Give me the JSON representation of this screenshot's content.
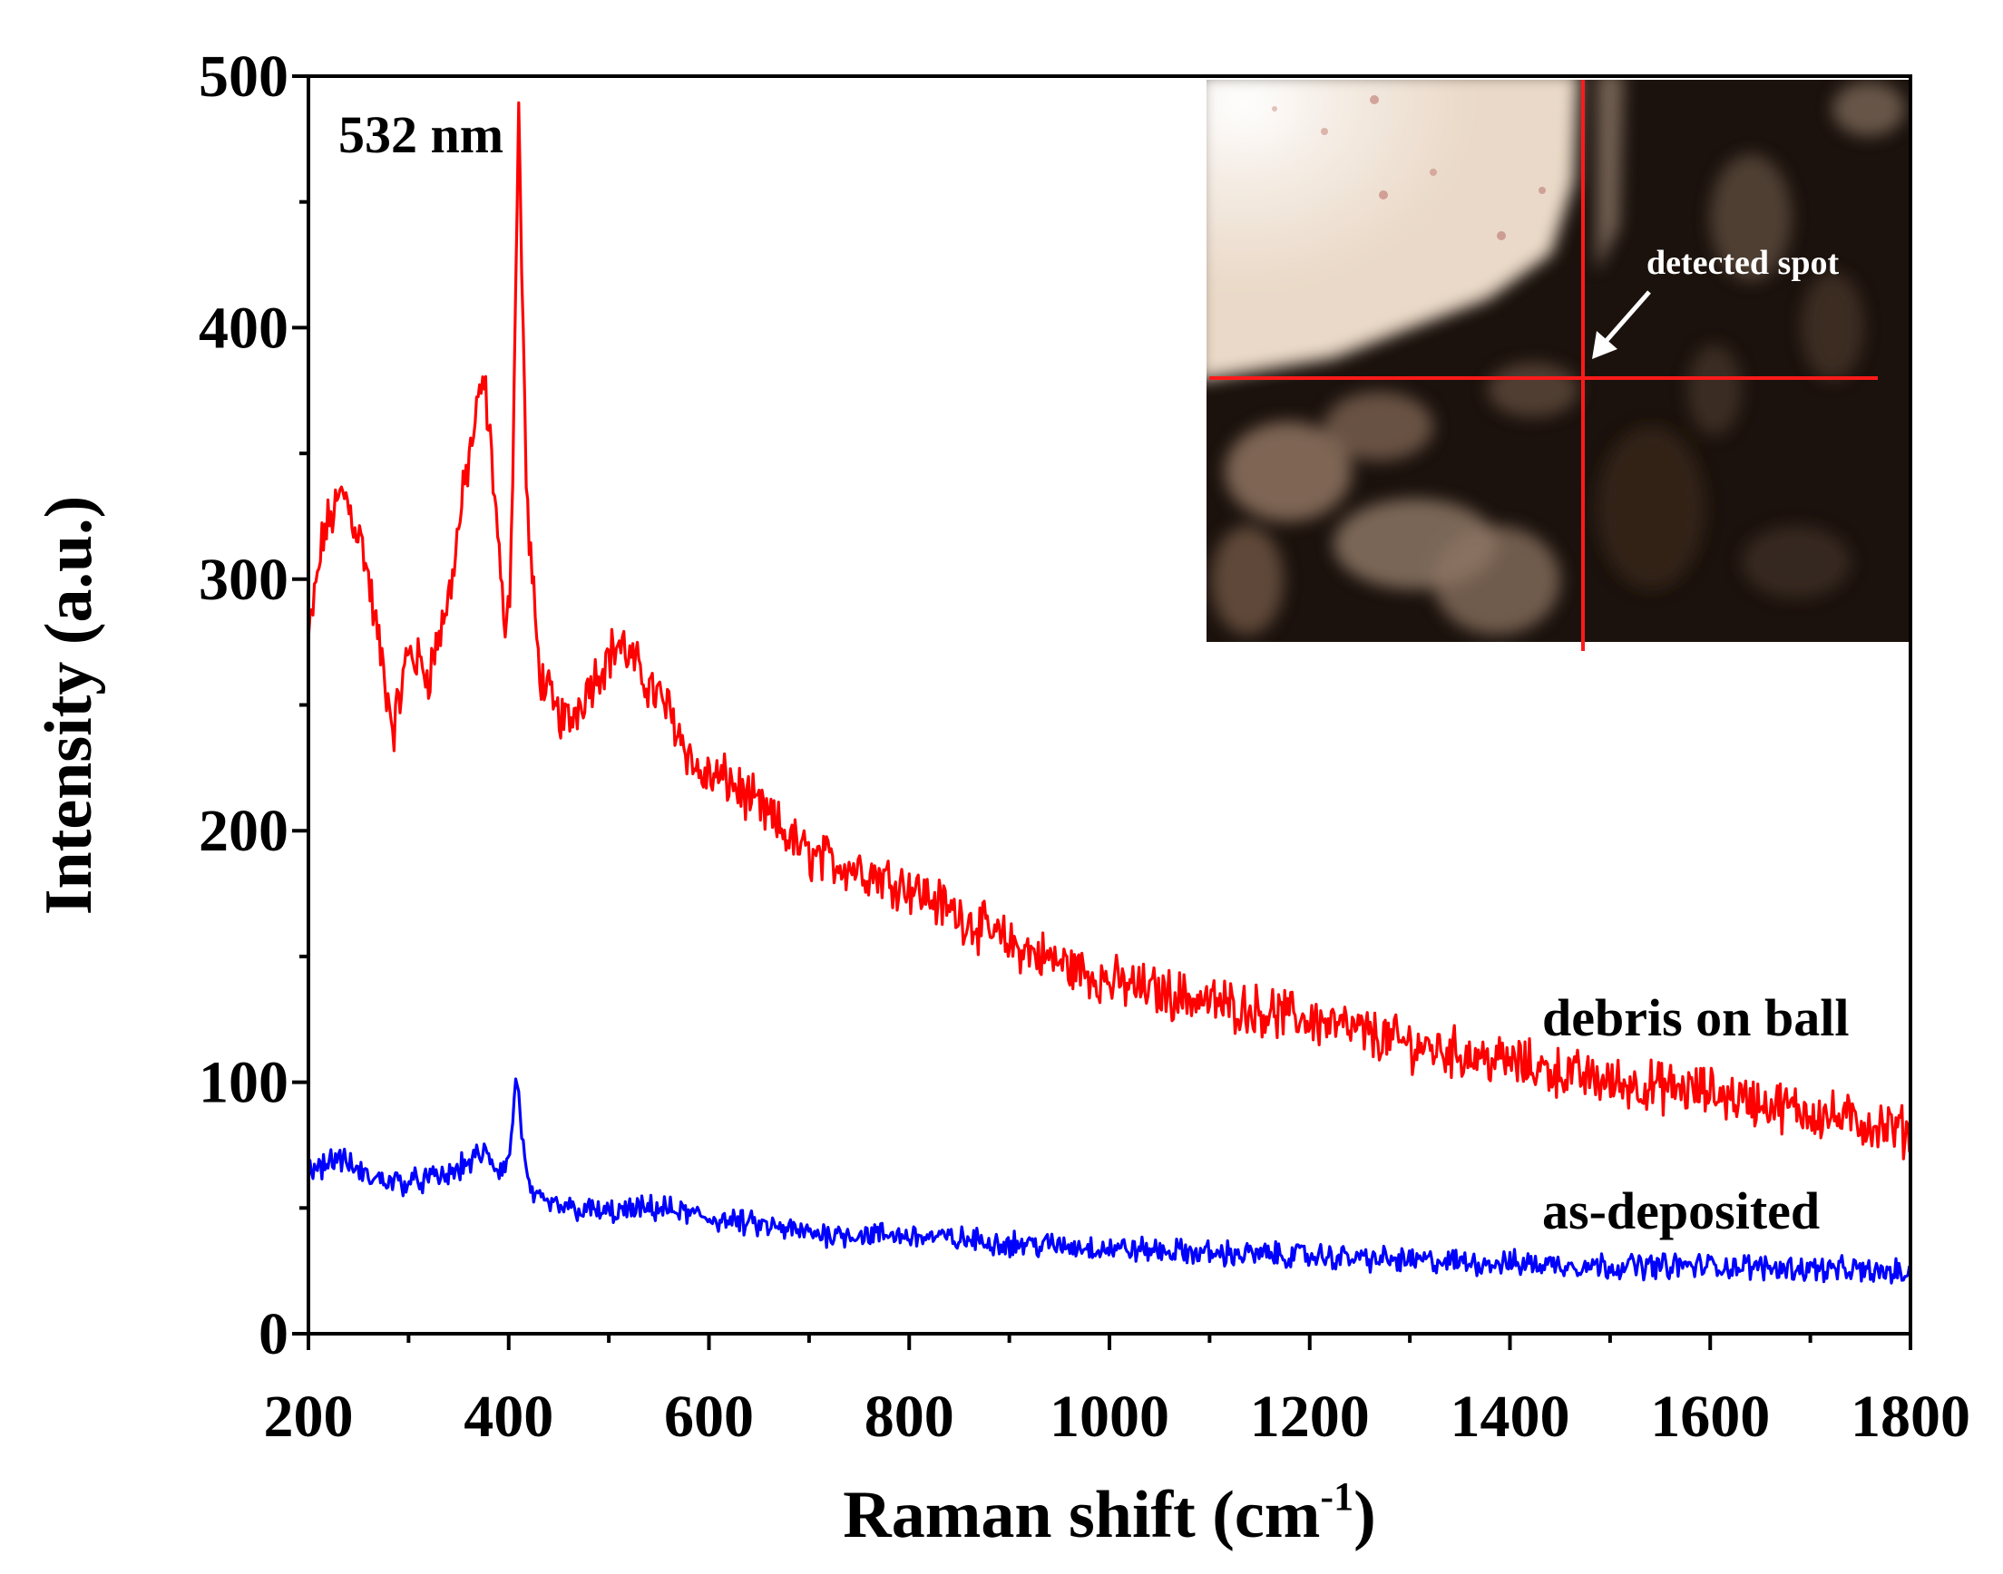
{
  "chart_data": {
    "type": "line",
    "xlabel": "Raman shift (cm",
    "xlabel_superscript": "-1",
    "xlabel_close": ")",
    "ylabel": "Intensity (a.u.)",
    "xlim": [
      200,
      1800
    ],
    "ylim": [
      0,
      500
    ],
    "x_ticks": [
      200,
      400,
      600,
      800,
      1000,
      1200,
      1400,
      1600,
      1800
    ],
    "y_ticks": [
      0,
      100,
      200,
      300,
      400,
      500
    ],
    "x_minor_step": 100,
    "y_minor_step": 50,
    "annotation": "532 nm",
    "series": [
      {
        "name": "debris on ball",
        "color": "#ff0000",
        "noise_amplitude": 8,
        "x": [
          200,
          215,
          235,
          255,
          270,
          285,
          300,
          320,
          340,
          360,
          375,
          385,
          395,
          402,
          410,
          418,
          430,
          445,
          460,
          480,
          510,
          540,
          560,
          590,
          620,
          660,
          700,
          750,
          800,
          900,
          1000,
          1100,
          1200,
          1300,
          1400,
          1500,
          1600,
          1700,
          1800
        ],
        "values": [
          275,
          318,
          335,
          312,
          275,
          240,
          272,
          262,
          292,
          348,
          380,
          340,
          282,
          300,
          485,
          330,
          265,
          248,
          243,
          258,
          275,
          258,
          248,
          222,
          220,
          205,
          190,
          185,
          178,
          155,
          140,
          132,
          125,
          115,
          108,
          100,
          96,
          88,
          80
        ]
      },
      {
        "name": "as-deposited",
        "color": "#0000ff",
        "noise_amplitude": 4,
        "x": [
          200,
          230,
          260,
          300,
          340,
          375,
          390,
          400,
          408,
          418,
          430,
          460,
          500,
          550,
          600,
          700,
          800,
          900,
          1000,
          1100,
          1200,
          1300,
          1400,
          1500,
          1600,
          1700,
          1800
        ],
        "values": [
          65,
          70,
          62,
          60,
          63,
          72,
          65,
          68,
          103,
          60,
          52,
          50,
          48,
          50,
          46,
          40,
          39,
          36,
          34,
          32,
          31,
          29,
          28,
          27,
          27,
          26,
          24
        ]
      }
    ]
  },
  "inset": {
    "annotation": "detected spot",
    "crosshair_color": "#ff0000"
  }
}
